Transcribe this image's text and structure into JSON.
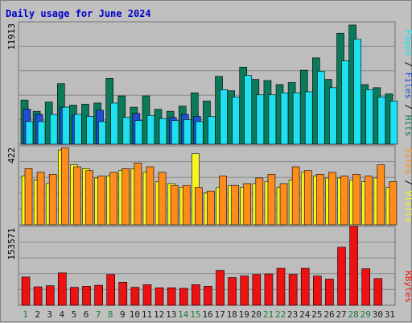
{
  "title": "Daily usage for June 2024",
  "colors": {
    "title": "#0000cc",
    "background": "#c0c0c0",
    "plot_bg": "#bdbdbd",
    "grid": "#8a8a8a",
    "hits": "#0a7a5a",
    "files": "#1f4fd6",
    "pages": "#1ee0f0",
    "visits": "#f5f520",
    "sites": "#ff8c1a",
    "kbytes": "#ee1111",
    "day_label": "#1a1a1a",
    "weekend_label": "#1a7a3a"
  },
  "chart_data": [
    {
      "type": "bar",
      "name": "hits-files-pages",
      "categories": [
        "1",
        "2",
        "3",
        "4",
        "5",
        "6",
        "7",
        "8",
        "9",
        "10",
        "11",
        "12",
        "13",
        "14",
        "15",
        "16",
        "17",
        "18",
        "19",
        "20",
        "21",
        "22",
        "23",
        "24",
        "25",
        "26",
        "27",
        "28",
        "29",
        "30",
        "31"
      ],
      "ymax_label": "11913",
      "ymax": 11913,
      "side_labels": [
        "Pages",
        "Files",
        "Hits"
      ],
      "series": [
        {
          "name": "Hits",
          "values": [
            4300,
            3200,
            4100,
            5900,
            3800,
            3900,
            4000,
            6400,
            4700,
            3600,
            4700,
            3400,
            3200,
            3700,
            5000,
            4200,
            6600,
            5200,
            7500,
            6300,
            6200,
            5800,
            6000,
            7200,
            8400,
            6300,
            10800,
            11600,
            5800,
            5500,
            4900
          ]
        },
        {
          "name": "Files",
          "values": [
            3400,
            2900,
            0,
            3600,
            2800,
            0,
            3300,
            0,
            0,
            3000,
            0,
            0,
            2600,
            2900,
            2700,
            0,
            0,
            0,
            0,
            0,
            0,
            0,
            0,
            0,
            0,
            0,
            0,
            0,
            0,
            0,
            0
          ]
        },
        {
          "name": "Pages",
          "values": [
            2200,
            2200,
            2900,
            3600,
            2900,
            2700,
            2200,
            4000,
            2600,
            2300,
            2800,
            2500,
            2300,
            2400,
            2200,
            2700,
            5300,
            4600,
            6700,
            4800,
            4800,
            5000,
            5000,
            5100,
            7100,
            5500,
            8100,
            10200,
            5300,
            4600,
            4200
          ]
        }
      ]
    },
    {
      "type": "bar",
      "name": "visits-sites",
      "categories": [
        "1",
        "2",
        "3",
        "4",
        "5",
        "6",
        "7",
        "8",
        "9",
        "10",
        "11",
        "12",
        "13",
        "14",
        "15",
        "16",
        "17",
        "18",
        "19",
        "20",
        "21",
        "22",
        "23",
        "24",
        "25",
        "26",
        "27",
        "28",
        "29",
        "30",
        "31"
      ],
      "ymax_label": "422",
      "ymax": 422,
      "side_labels": [
        "Sites",
        "Visits"
      ],
      "series": [
        {
          "name": "Visits",
          "values": [
            260,
            240,
            220,
            400,
            320,
            300,
            250,
            260,
            290,
            300,
            280,
            230,
            220,
            200,
            380,
            170,
            200,
            210,
            200,
            220,
            230,
            200,
            240,
            280,
            260,
            250,
            250,
            240,
            230,
            250,
            200
          ]
        },
        {
          "name": "Sites",
          "values": [
            300,
            280,
            270,
            410,
            310,
            290,
            260,
            280,
            300,
            330,
            310,
            280,
            210,
            210,
            200,
            180,
            260,
            210,
            220,
            250,
            270,
            220,
            310,
            290,
            270,
            280,
            260,
            270,
            260,
            320,
            230
          ]
        }
      ]
    },
    {
      "type": "bar",
      "name": "kbytes",
      "categories": [
        "1",
        "2",
        "3",
        "4",
        "5",
        "6",
        "7",
        "8",
        "9",
        "10",
        "11",
        "12",
        "13",
        "14",
        "15",
        "16",
        "17",
        "18",
        "19",
        "20",
        "21",
        "22",
        "23",
        "24",
        "25",
        "26",
        "27",
        "28",
        "29",
        "30",
        "31"
      ],
      "ymax_label": "153571",
      "ymax": 153571,
      "side_labels": [
        "KBytes"
      ],
      "series": [
        {
          "name": "KBytes",
          "values": [
            55000,
            36000,
            38000,
            63000,
            35000,
            37000,
            39000,
            60000,
            45000,
            35000,
            40000,
            34000,
            34000,
            33000,
            40000,
            37000,
            68000,
            54000,
            57000,
            60000,
            61000,
            72000,
            60000,
            72000,
            57000,
            51000,
            113000,
            153571,
            71000,
            52000,
            0
          ]
        }
      ]
    }
  ]
}
